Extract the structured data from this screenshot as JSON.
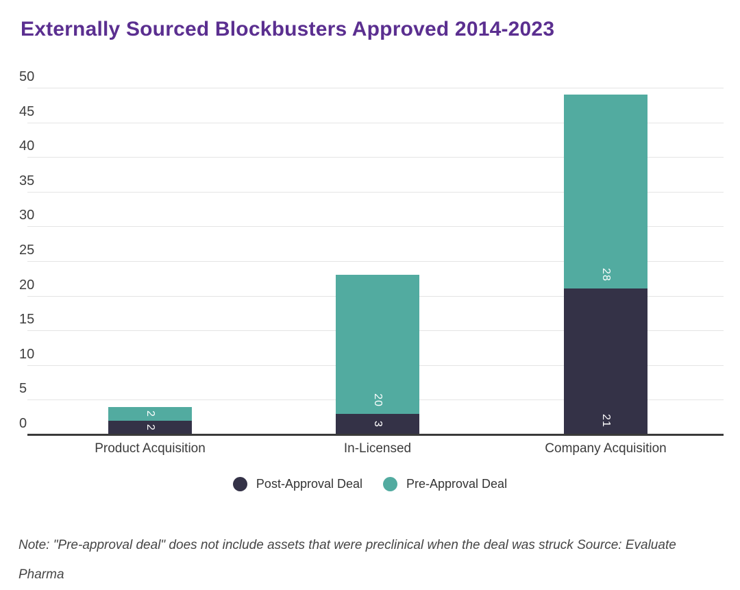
{
  "title": "Externally Sourced Blockbusters Approved 2014-2023",
  "colors": {
    "title": "#5B2F90",
    "post_approval": "#343247",
    "pre_approval": "#52ABA0",
    "gridline": "#e4e4e4",
    "axis_line": "#3a3a3a",
    "tick_text": "#3e3e3e",
    "category_text": "#3b3b3b",
    "bar_label_text": "#ffffff"
  },
  "chart_data": {
    "type": "bar",
    "stacked": true,
    "title": "Externally Sourced Blockbusters Approved 2014-2023",
    "categories": [
      "Product Acquisition",
      "In-Licensed",
      "Company Acquisition"
    ],
    "series": [
      {
        "name": "Post-Approval Deal",
        "color_key": "post_approval",
        "values": [
          2,
          3,
          21
        ]
      },
      {
        "name": "Pre-Approval Deal",
        "color_key": "pre_approval",
        "values": [
          2,
          20,
          28
        ]
      }
    ],
    "totals": [
      4,
      23,
      49
    ],
    "xlabel": "",
    "ylabel": "",
    "ylim": [
      0,
      50
    ],
    "ytick_step": 5,
    "yticks": [
      0,
      5,
      10,
      15,
      20,
      25,
      30,
      35,
      40,
      45,
      50
    ],
    "grid": true,
    "legend_position": "bottom",
    "bar_label_rotation": 90
  },
  "note": "Note: \"Pre-approval deal\" does not include assets that were preclinical when the deal was struck Source: Evaluate Pharma"
}
